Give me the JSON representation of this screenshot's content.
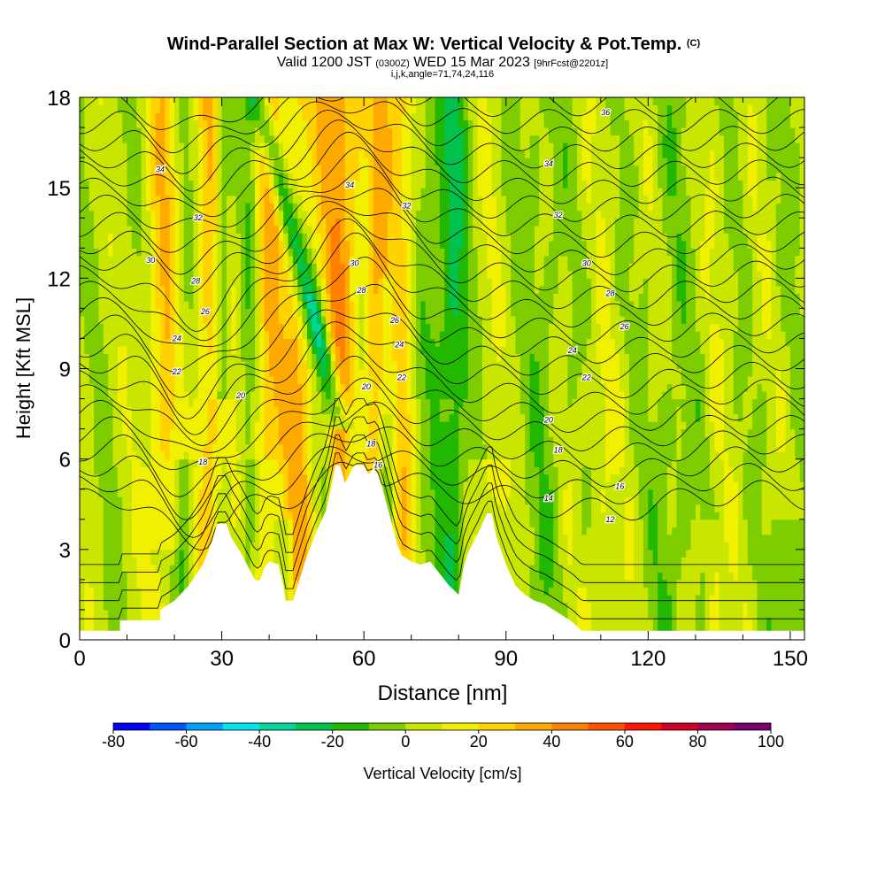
{
  "title": {
    "main": "Wind-Parallel Section at Max W: Vertical Velocity & Pot.Temp.",
    "main_suffix": "(C)",
    "valid_prefix": "Valid 1200 JST",
    "valid_utc": "(0300Z)",
    "valid_date": "WED 15 Mar 2023",
    "forecast": "[9hrFcst@2201z]",
    "indices": "i,j,k,angle=71,74,24,116"
  },
  "chart_data": {
    "type": "heatmap",
    "xlabel": "Distance [nm]",
    "ylabel": "Height [Kft MSL]",
    "xlim": [
      0,
      153
    ],
    "ylim": [
      0,
      18
    ],
    "xticks": [
      0,
      30,
      60,
      90,
      120,
      150
    ],
    "yticks": [
      0,
      3,
      6,
      9,
      12,
      15,
      18
    ],
    "shaded_field": "Vertical Velocity",
    "contour_field": "Pot.Temp.",
    "terrain": [
      [
        0,
        0.3
      ],
      [
        8.5,
        0.3
      ],
      [
        8.5,
        0.65
      ],
      [
        17,
        0.65
      ],
      [
        17,
        1.0
      ],
      [
        20,
        1.3
      ],
      [
        23,
        1.8
      ],
      [
        26,
        2.5
      ],
      [
        28,
        3.3
      ],
      [
        29,
        3.85
      ],
      [
        31,
        3.85
      ],
      [
        32,
        3.4
      ],
      [
        34,
        2.9
      ],
      [
        36,
        2.3
      ],
      [
        37,
        2.0
      ],
      [
        38,
        1.95
      ],
      [
        39,
        2.4
      ],
      [
        40,
        2.6
      ],
      [
        42,
        2.5
      ],
      [
        43,
        1.8
      ],
      [
        43.5,
        1.3
      ],
      [
        45,
        1.3
      ],
      [
        46,
        1.8
      ],
      [
        48,
        2.8
      ],
      [
        50,
        3.6
      ],
      [
        52,
        4.3
      ],
      [
        53,
        5.0
      ],
      [
        54,
        5.8
      ],
      [
        55,
        5.8
      ],
      [
        56,
        5.2
      ],
      [
        57,
        5.5
      ],
      [
        58,
        5.8
      ],
      [
        60,
        5.8
      ],
      [
        61,
        5.5
      ],
      [
        62,
        5.7
      ],
      [
        63,
        5.5
      ],
      [
        64,
        5.0
      ],
      [
        65,
        4.4
      ],
      [
        66,
        3.8
      ],
      [
        67,
        3.2
      ],
      [
        68,
        2.8
      ],
      [
        70,
        2.6
      ],
      [
        72,
        2.5
      ],
      [
        74,
        2.6
      ],
      [
        76,
        2.2
      ],
      [
        78,
        1.8
      ],
      [
        80,
        1.5
      ],
      [
        81,
        2.4
      ],
      [
        82,
        2.9
      ],
      [
        84,
        3.5
      ],
      [
        86,
        4.2
      ],
      [
        87,
        4.2
      ],
      [
        88,
        3.4
      ],
      [
        90,
        2.5
      ],
      [
        92,
        1.8
      ],
      [
        94,
        1.5
      ],
      [
        96,
        1.3
      ],
      [
        98,
        1.2
      ],
      [
        100,
        1.0
      ],
      [
        102,
        0.8
      ],
      [
        104,
        0.6
      ],
      [
        106,
        0.3
      ],
      [
        153,
        0.3
      ]
    ],
    "theta_levels": [
      12,
      14,
      16,
      18,
      20,
      22,
      24,
      26,
      28,
      30,
      32,
      34,
      36
    ],
    "contour_labels": [
      {
        "text": "34",
        "x": 17,
        "y": 15.6
      },
      {
        "text": "32",
        "x": 25,
        "y": 14.0
      },
      {
        "text": "30",
        "x": 15,
        "y": 12.6
      },
      {
        "text": "28",
        "x": 24.5,
        "y": 11.9
      },
      {
        "text": "26",
        "x": 26.5,
        "y": 10.9
      },
      {
        "text": "24",
        "x": 20.5,
        "y": 10.0
      },
      {
        "text": "22",
        "x": 20.5,
        "y": 8.9
      },
      {
        "text": "20",
        "x": 34,
        "y": 8.1
      },
      {
        "text": "18",
        "x": 26,
        "y": 5.9
      },
      {
        "text": "34",
        "x": 57,
        "y": 15.1
      },
      {
        "text": "32",
        "x": 69,
        "y": 14.4
      },
      {
        "text": "30",
        "x": 58,
        "y": 12.5
      },
      {
        "text": "28",
        "x": 59.5,
        "y": 11.6
      },
      {
        "text": "26",
        "x": 66.5,
        "y": 10.6
      },
      {
        "text": "24",
        "x": 67.5,
        "y": 9.8
      },
      {
        "text": "22",
        "x": 68,
        "y": 8.7
      },
      {
        "text": "20",
        "x": 60.5,
        "y": 8.4
      },
      {
        "text": "18",
        "x": 61.5,
        "y": 6.5
      },
      {
        "text": "16",
        "x": 63,
        "y": 5.8
      },
      {
        "text": "36",
        "x": 111,
        "y": 17.5
      },
      {
        "text": "34",
        "x": 99,
        "y": 15.8
      },
      {
        "text": "32",
        "x": 101,
        "y": 14.1
      },
      {
        "text": "30",
        "x": 107,
        "y": 12.5
      },
      {
        "text": "28",
        "x": 112,
        "y": 11.5
      },
      {
        "text": "26",
        "x": 115,
        "y": 10.4
      },
      {
        "text": "24",
        "x": 104,
        "y": 9.6
      },
      {
        "text": "22",
        "x": 107,
        "y": 8.7
      },
      {
        "text": "20",
        "x": 99,
        "y": 7.3
      },
      {
        "text": "18",
        "x": 101,
        "y": 6.3
      },
      {
        "text": "16",
        "x": 114,
        "y": 5.1
      },
      {
        "text": "14",
        "x": 99,
        "y": 4.7
      },
      {
        "text": "12",
        "x": 112,
        "y": 4.0
      }
    ],
    "colorbar": {
      "label": "Vertical Velocity [cm/s]",
      "levels": [
        -80,
        -70,
        -60,
        -50,
        -40,
        -30,
        -20,
        -10,
        0,
        10,
        20,
        30,
        40,
        50,
        60,
        70,
        80,
        90,
        100
      ],
      "tick_labels": [
        "-80",
        "-60",
        "-40",
        "-20",
        "0",
        "20",
        "40",
        "60",
        "80",
        "100"
      ],
      "colors": [
        "#0000ff",
        "#0055ff",
        "#00a0ff",
        "#00e6f0",
        "#00d59b",
        "#00c24c",
        "#23b800",
        "#7dcd00",
        "#c8e600",
        "#f0f000",
        "#ffd200",
        "#ffaa00",
        "#ff8000",
        "#ff5000",
        "#ff1400",
        "#d20028",
        "#a00050",
        "#78006e"
      ]
    }
  },
  "colors": {
    "background": "#ffffff",
    "axis": "#000000",
    "contour": "#000000",
    "terrain": "#ffffff"
  }
}
